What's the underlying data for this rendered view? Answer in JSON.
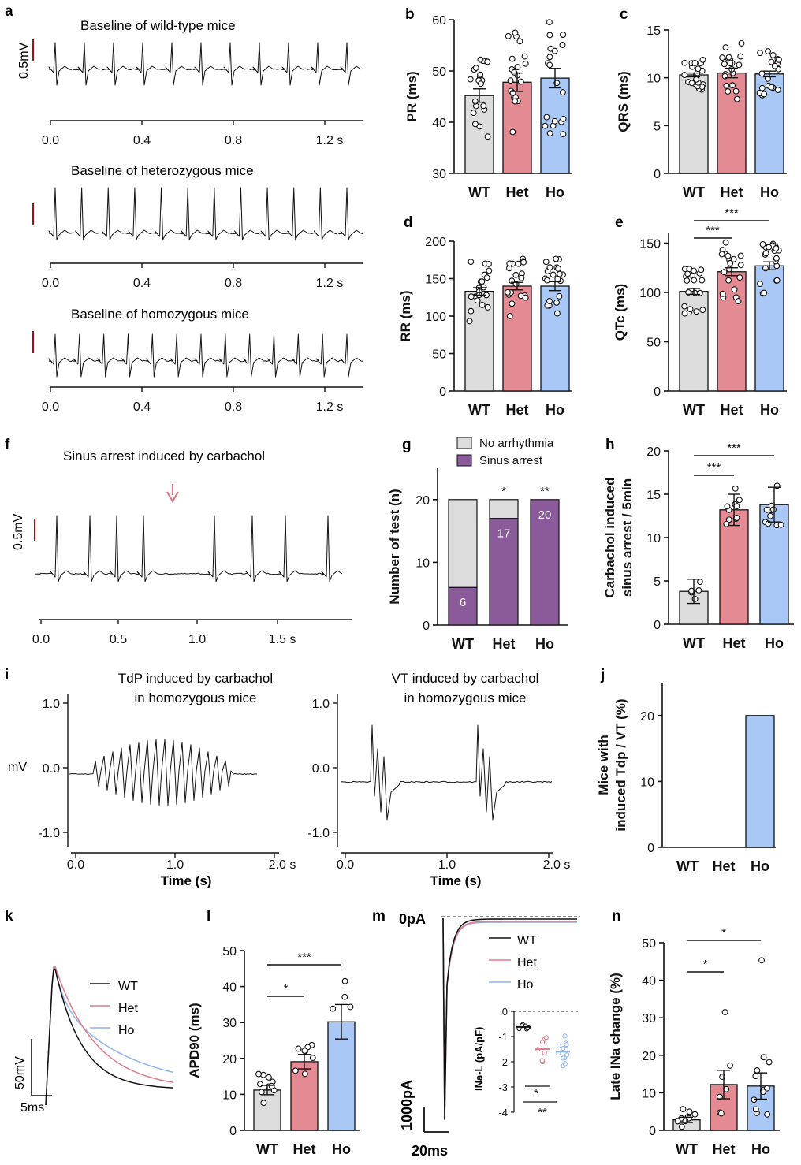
{
  "colors": {
    "wt": "#dcdcdc",
    "het": "#e48a93",
    "ho": "#a9c8f6",
    "arrest": "#8a5a9a",
    "noarr": "#dcdcdc",
    "scale_red": "#a01010",
    "arrow": "#d97a88",
    "wt_line": "#111111",
    "het_line": "#de7c8a",
    "ho_line": "#8fb4ee"
  },
  "labels": {
    "a": "a",
    "b": "b",
    "c": "c",
    "d": "d",
    "e": "e",
    "f": "f",
    "g": "g",
    "h": "h",
    "i": "i",
    "j": "j",
    "k": "k",
    "l": "l",
    "m": "m",
    "n": "n"
  },
  "panel_a": {
    "titles": [
      "Baseline of wild-type mice",
      "Baseline of heterozygous mice",
      "Baseline of homozygous mice"
    ],
    "scale_label": "0.5mV",
    "ticks": [
      "0.0",
      "0.4",
      "0.8",
      "1.2 s"
    ]
  },
  "panel_f": {
    "title": "Sinus arrest induced by carbachol",
    "scale_label": "0.5mV",
    "ticks": [
      "0.0",
      "0.5",
      "1.0",
      "1.5 s"
    ]
  },
  "panel_i": {
    "title_left_1": "TdP induced by carbachol",
    "title_left_2": "in homozygous mice",
    "title_right_1": "VT induced by carbachol",
    "title_right_2": "in homozygous mice",
    "mv": "mV",
    "yticks": [
      "1.0",
      "0.0",
      "-1.0"
    ],
    "xticks": [
      "0.0",
      "1.0",
      "2.0 s"
    ],
    "xlabel": "Time (s)"
  },
  "panel_k": {
    "legend": [
      "WT",
      "Het",
      "Ho"
    ],
    "scale_y": "50mV",
    "scale_x": "5ms"
  },
  "panel_m": {
    "zero": "0pA",
    "legend": [
      "WT",
      "Het",
      "Ho"
    ],
    "scale_y": "1000pA",
    "scale_x": "20ms",
    "inset_ylabel": "INa-L  (pA/pF)",
    "inset_ticks": [
      "0",
      "-1",
      "-2",
      "-3",
      "-4"
    ]
  },
  "chart_data": [
    {
      "panel": "b",
      "type": "bar",
      "categories": [
        "WT",
        "Het",
        "Ho"
      ],
      "values": [
        45.2,
        47.8,
        48.6
      ],
      "sem": [
        1.3,
        1.8,
        1.9
      ],
      "ylabel": "PR (ms)",
      "ylim": [
        30,
        60
      ],
      "yticks": [
        "30",
        "40",
        "50",
        "60"
      ]
    },
    {
      "panel": "c",
      "type": "bar",
      "categories": [
        "WT",
        "Het",
        "Ho"
      ],
      "values": [
        10.3,
        10.5,
        10.4
      ],
      "sem": [
        0.2,
        0.5,
        0.3
      ],
      "ylabel": "QRS (ms)",
      "ylim": [
        0,
        15
      ],
      "yticks": [
        "0",
        "5",
        "10",
        "15"
      ]
    },
    {
      "panel": "d",
      "type": "bar",
      "categories": [
        "WT",
        "Het",
        "Ho"
      ],
      "values": [
        133,
        140,
        140
      ],
      "sem": [
        5,
        5,
        6
      ],
      "ylabel": "RR (ms)",
      "ylim": [
        0,
        200
      ],
      "yticks": [
        "0",
        "50",
        "100",
        "150",
        "200"
      ]
    },
    {
      "panel": "e",
      "type": "bar",
      "categories": [
        "WT",
        "Het",
        "Ho"
      ],
      "values": [
        101,
        121,
        127
      ],
      "sem": [
        3,
        4,
        4
      ],
      "ylabel": "QTc (ms)",
      "ylim": [
        0,
        160
      ],
      "yticks": [
        "0",
        "50",
        "100",
        "150"
      ],
      "significance": [
        "***",
        "***"
      ]
    },
    {
      "panel": "g",
      "type": "stacked_bar",
      "categories": [
        "WT",
        "Het",
        "Ho"
      ],
      "series": [
        {
          "name": "Sinus arrest",
          "values": [
            6,
            17,
            20
          ]
        },
        {
          "name": "No arrhythmia",
          "values": [
            14,
            3,
            0
          ]
        }
      ],
      "ylabel": "Number of test (n)",
      "ylim": [
        0,
        25
      ],
      "yticks": [
        "0",
        "10",
        "20"
      ],
      "significance": [
        "*",
        "**"
      ]
    },
    {
      "panel": "h",
      "type": "bar",
      "categories": [
        "WT",
        "Het",
        "Ho"
      ],
      "values": [
        3.8,
        13.2,
        13.8
      ],
      "sd": [
        1.4,
        1.8,
        2.0
      ],
      "ylabel_1": "Carbachol induced",
      "ylabel_2": "sinus arrest / 5min",
      "ylim": [
        0,
        20
      ],
      "yticks": [
        "0",
        "5",
        "10",
        "15",
        "20"
      ],
      "significance": [
        "***",
        "***"
      ]
    },
    {
      "panel": "j",
      "type": "bar",
      "categories": [
        "WT",
        "Het",
        "Ho"
      ],
      "values": [
        0,
        0,
        20
      ],
      "ylabel_1": "Mice with",
      "ylabel_2": "induced Tdp / VT (%)",
      "ylim": [
        0,
        25
      ],
      "yticks": [
        "0",
        "10",
        "20"
      ]
    },
    {
      "panel": "l",
      "type": "bar",
      "categories": [
        "WT",
        "Het",
        "Ho"
      ],
      "values": [
        11.2,
        19.1,
        30.2
      ],
      "sem": [
        1.3,
        2.0,
        4.8
      ],
      "ylabel": "APD90 (ms)",
      "ylim": [
        0,
        50
      ],
      "yticks": [
        "0",
        "10",
        "20",
        "30",
        "40",
        "50"
      ],
      "significance": [
        "*",
        "***"
      ]
    },
    {
      "panel": "n",
      "type": "bar",
      "categories": [
        "WT",
        "Het",
        "Ho"
      ],
      "values": [
        2.8,
        12.2,
        11.8
      ],
      "sem": [
        0.7,
        3.8,
        3.5
      ],
      "ylabel": "Late INa change (%)",
      "ylim": [
        0,
        50
      ],
      "yticks": [
        "0",
        "10",
        "20",
        "30",
        "40",
        "50"
      ],
      "significance": [
        "*",
        "*"
      ]
    }
  ]
}
